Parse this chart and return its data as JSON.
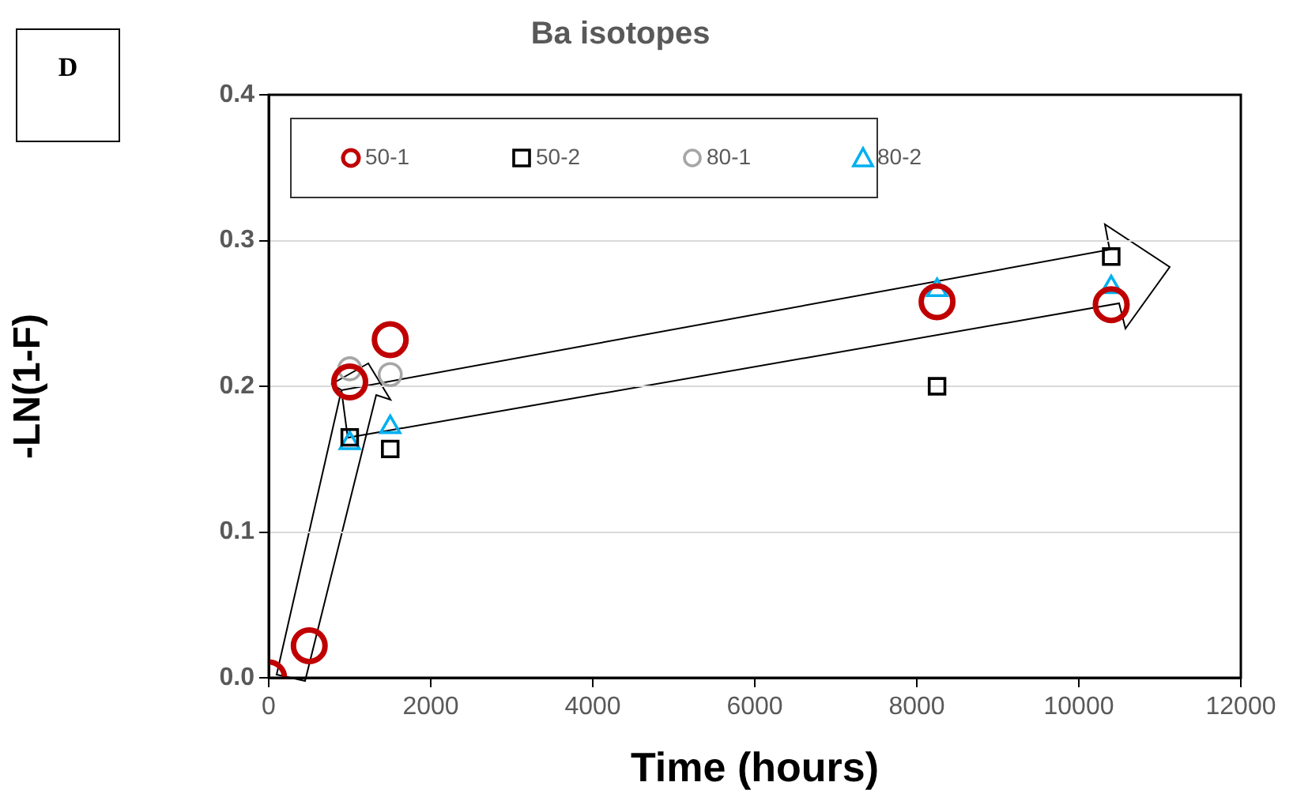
{
  "chart_data": {
    "type": "scatter",
    "title": "Ba isotopes",
    "xlabel": "Time (hours)",
    "ylabel": "-LN(1-F)",
    "annotations": [
      "D"
    ],
    "xlim": [
      0,
      12000
    ],
    "xticks": [
      0,
      2000,
      4000,
      6000,
      8000,
      10000,
      12000
    ],
    "ylim": [
      0,
      0.4
    ],
    "yticks": [
      {
        "value": 0,
        "label": "0.0"
      },
      {
        "value": 0.1,
        "label": "0.1"
      },
      {
        "value": 0.2,
        "label": "0.2"
      },
      {
        "value": 0.3,
        "label": "0.3"
      },
      {
        "value": 0.4,
        "label": "0.4"
      }
    ],
    "grid": "y",
    "legend": "top left",
    "series": [
      {
        "name": "50-1",
        "color": "#c00000",
        "marker": "circle",
        "x": [
          0,
          500,
          1000,
          1500,
          8250,
          10400
        ],
        "values": [
          0,
          0.022,
          0.203,
          0.232,
          0.258,
          0.256
        ]
      },
      {
        "name": "50-2",
        "color": "#000000",
        "marker": "square",
        "x": [
          1000,
          1500,
          8250,
          10400
        ],
        "values": [
          0.165,
          0.157,
          0.2,
          0.289
        ]
      },
      {
        "name": "80-1",
        "color": "#a6a6a6",
        "marker": "circle",
        "x": [
          1000,
          1500
        ],
        "values": [
          0.212,
          0.208
        ]
      },
      {
        "name": "80-2",
        "color": "#00b0f0",
        "marker": "triangle",
        "x": [
          1000,
          1500,
          8250,
          10400
        ],
        "values": [
          0.161,
          0.172,
          0.266,
          0.268
        ]
      }
    ]
  }
}
